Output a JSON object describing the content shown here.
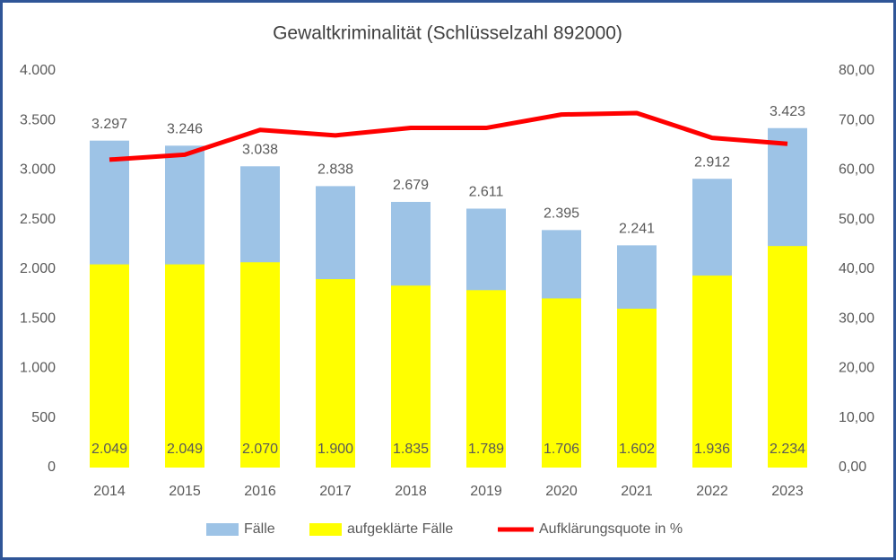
{
  "chart_data": {
    "type": "bar",
    "title": "Gewaltkriminalität (Schlüsselzahl 892000)",
    "categories": [
      "2014",
      "2015",
      "2016",
      "2017",
      "2018",
      "2019",
      "2020",
      "2021",
      "2022",
      "2023"
    ],
    "series": [
      {
        "name": "Fälle",
        "color": "#9dc3e6",
        "values": [
          3297,
          3246,
          3038,
          2838,
          2679,
          2611,
          2395,
          2241,
          2912,
          3423
        ],
        "value_labels": [
          "3.297",
          "3.246",
          "3.038",
          "2.838",
          "2.679",
          "2.611",
          "2.395",
          "2.241",
          "2.912",
          "3.423"
        ]
      },
      {
        "name": "aufgeklärte Fälle",
        "color": "#ffff00",
        "values": [
          2049,
          2049,
          2070,
          1900,
          1835,
          1789,
          1706,
          1602,
          1936,
          2234
        ],
        "value_labels": [
          "2.049",
          "2.049",
          "2.070",
          "1.900",
          "1.835",
          "1.789",
          "1.706",
          "1.602",
          "1.936",
          "2.234"
        ]
      },
      {
        "name": "Aufklärungsquote in %",
        "color": "#ff0000",
        "type": "line",
        "axis": "y2",
        "values": [
          62.1,
          63.1,
          68.1,
          67.0,
          68.5,
          68.5,
          71.2,
          71.5,
          66.5,
          65.3
        ]
      }
    ],
    "ylim": [
      0,
      4000
    ],
    "yticks": [
      0,
      500,
      {
        "value": 1000,
        "label": "1.000"
      },
      {
        "value": 1500,
        "label": "1.500"
      },
      {
        "value": 2000,
        "label": "2.000"
      },
      {
        "value": 2500,
        "label": "2.500"
      },
      {
        "value": 3000,
        "label": "3.000"
      },
      {
        "value": 3500,
        "label": "3.500"
      },
      {
        "value": 4000,
        "label": "4.000"
      }
    ],
    "y2lim": [
      0,
      80
    ],
    "y2ticks": [
      {
        "value": 0,
        "label": "0,00"
      },
      {
        "value": 10,
        "label": "10,00"
      },
      {
        "value": 20,
        "label": "20,00"
      },
      {
        "value": 30,
        "label": "30,00"
      },
      {
        "value": 40,
        "label": "40,00"
      },
      {
        "value": 50,
        "label": "50,00"
      },
      {
        "value": 60,
        "label": "60,00"
      },
      {
        "value": 70,
        "label": "70,00"
      },
      {
        "value": 80,
        "label": "80,00"
      }
    ],
    "legend": "bottom"
  }
}
